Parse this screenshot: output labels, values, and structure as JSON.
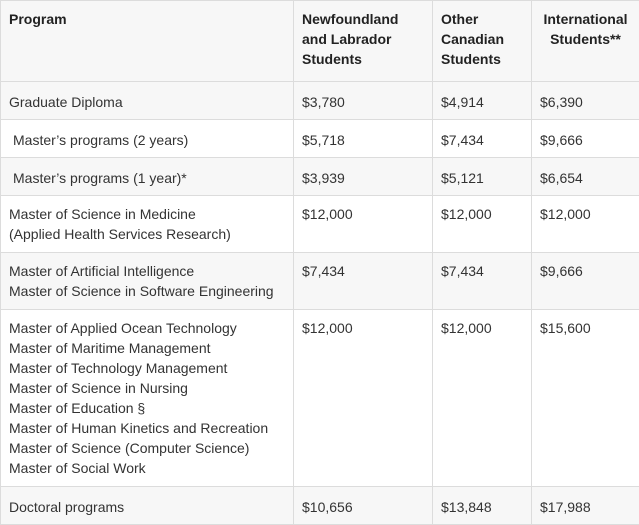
{
  "table": {
    "headers": {
      "program": "Program",
      "nl": "Newfoundland and Labrador Students",
      "canadian": "Other Canadian Students",
      "international": "International Students**"
    },
    "rows": [
      {
        "programs": [
          "Graduate Diploma"
        ],
        "nl": "$3,780",
        "canadian": "$4,914",
        "international": "$6,390"
      },
      {
        "programs": [
          "Master’s programs (2 years)"
        ],
        "nl": "$5,718",
        "canadian": "$7,434",
        "international": "$9,666"
      },
      {
        "programs": [
          "Master’s programs (1 year)*"
        ],
        "nl": "$3,939",
        "canadian": "$5,121",
        "international": "$6,654"
      },
      {
        "programs": [
          "Master of Science in Medicine",
          "(Applied Health Services Research)"
        ],
        "nl": "$12,000",
        "canadian": "$12,000",
        "international": "$12,000"
      },
      {
        "programs": [
          "Master of Artificial Intelligence",
          "Master of Science in Software Engineering"
        ],
        "nl": "$7,434",
        "canadian": "$7,434",
        "international": "$9,666"
      },
      {
        "programs": [
          "Master of Applied Ocean Technology",
          "Master of Maritime Management",
          "Master of Technology Management",
          "Master of Science in Nursing",
          "Master of Education §",
          "Master of Human Kinetics and Recreation",
          "Master of Science (Computer Science)",
          "Master of Social Work"
        ],
        "nl": "$12,000",
        "canadian": "$12,000",
        "international": "$15,600"
      },
      {
        "programs": [
          "Doctoral programs"
        ],
        "nl": "$10,656",
        "canadian": "$13,848",
        "international": "$17,988"
      }
    ]
  }
}
